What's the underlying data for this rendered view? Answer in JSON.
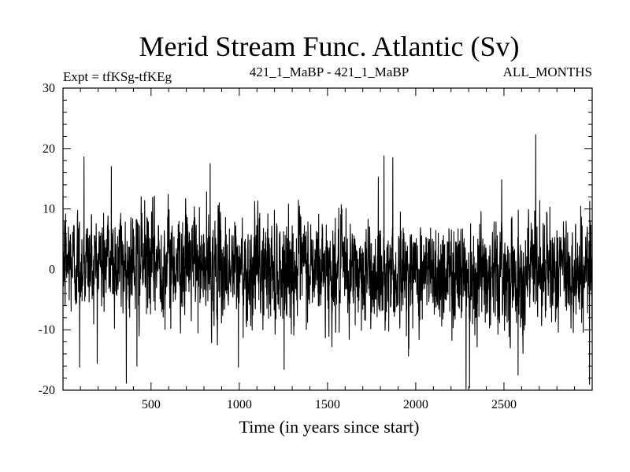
{
  "chart_data": {
    "type": "line",
    "title": "Merid Stream Func. Atlantic (Sv)",
    "subtitle_left": "Expt = tfKSg-tfKEg",
    "subtitle_center": "421_1_MaBP - 421_1_MaBP",
    "subtitle_right": "ALL_MONTHS",
    "xlabel": "Time (in years since start)",
    "ylabel": "",
    "xlim": [
      1,
      3000
    ],
    "ylim": [
      -20,
      30
    ],
    "xticks": [
      500,
      1000,
      1500,
      2000,
      2500
    ],
    "xtick_labels": [
      "500",
      "1000",
      "1500",
      "2000",
      "2500"
    ],
    "yticks": [
      -20,
      -10,
      0,
      10,
      20,
      30
    ],
    "ytick_labels": [
      "-20",
      "-10",
      "0",
      "10",
      "20",
      "30"
    ],
    "x_minor_step": 100,
    "y_minor_step": 2,
    "series": [
      {
        "name": "Merid Stream Func. Atlantic",
        "color": "#000000",
        "x_start": 1,
        "x_step": 1,
        "n_points": 3000,
        "mean": 0.3,
        "std": 4.3,
        "segment_means": [
          {
            "from": 1,
            "to": 750,
            "value": 1.2
          },
          {
            "from": 750,
            "to": 1500,
            "value": 0.0
          },
          {
            "from": 1500,
            "to": 2250,
            "value": -0.6
          },
          {
            "from": 2250,
            "to": 3000,
            "value": -0.3
          }
        ],
        "extremes": [
          {
            "x": 2680,
            "y": 22.3
          },
          {
            "x": 1820,
            "y": 18.8
          },
          {
            "x": 1870,
            "y": 18.5
          },
          {
            "x": 120,
            "y": 18.6
          },
          {
            "x": 835,
            "y": 17.5
          },
          {
            "x": 275,
            "y": 17.0
          },
          {
            "x": 2285,
            "y": -19.8
          },
          {
            "x": 2305,
            "y": -19.6
          },
          {
            "x": 2985,
            "y": -19.0
          },
          {
            "x": 95,
            "y": -16.2
          },
          {
            "x": 995,
            "y": -16.2
          },
          {
            "x": 420,
            "y": -16.0
          },
          {
            "x": 2580,
            "y": -17.5
          }
        ]
      }
    ]
  }
}
